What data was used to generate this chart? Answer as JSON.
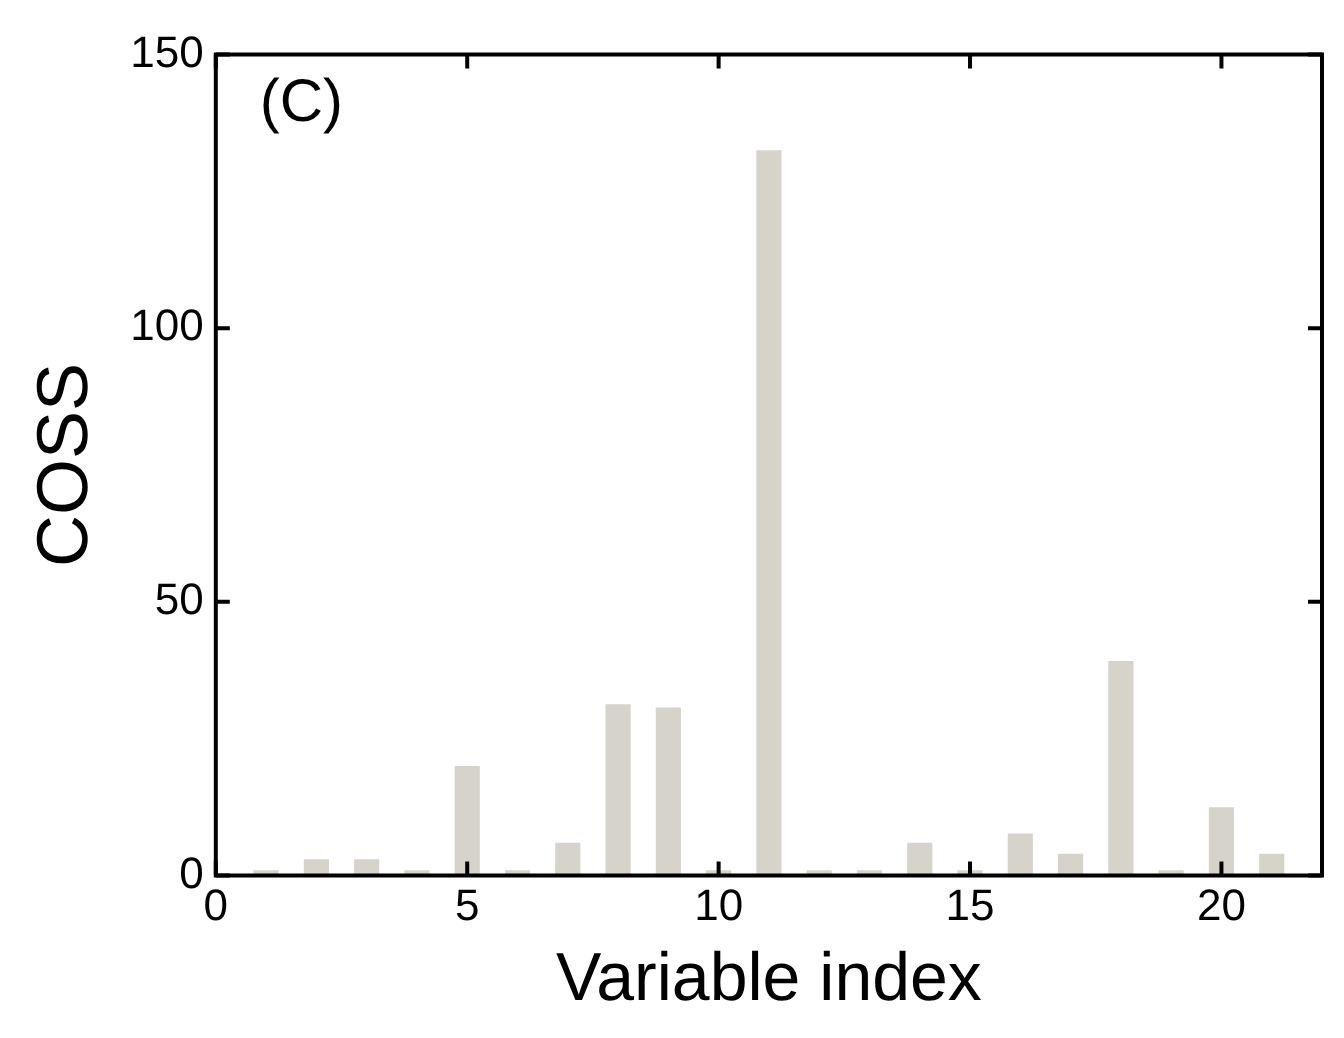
{
  "chart_data": {
    "type": "bar",
    "xlabel": "Variable index",
    "ylabel": "COSS",
    "annotations": [
      "(C)"
    ],
    "x": [
      1,
      2,
      3,
      4,
      5,
      6,
      7,
      8,
      9,
      10,
      11,
      12,
      13,
      14,
      15,
      16,
      17,
      18,
      19,
      20,
      21
    ],
    "values": [
      1,
      3,
      3,
      1,
      20,
      1,
      6,
      31.3,
      30.7,
      1,
      132.5,
      1,
      1,
      6,
      1,
      7.7,
      4,
      39.2,
      1,
      12.5,
      4
    ],
    "color": "#d6d3cb",
    "xlim": [
      0,
      22
    ],
    "xticks": [
      0,
      5,
      10,
      15,
      20
    ],
    "ylim": [
      0,
      150
    ],
    "yticks": [
      0,
      50,
      100,
      150
    ],
    "grid": false,
    "legend": false
  }
}
